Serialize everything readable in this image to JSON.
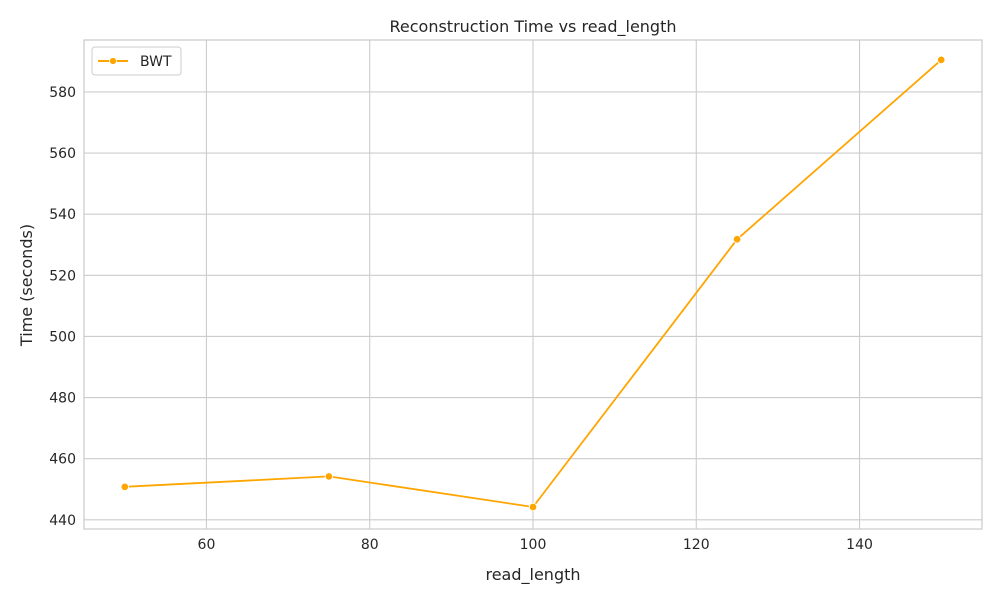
{
  "chart_data": {
    "type": "line",
    "title": "Reconstruction Time vs read_length",
    "xlabel": "read_length",
    "ylabel": "Time (seconds)",
    "xlim": [
      45,
      155
    ],
    "ylim": [
      437,
      597
    ],
    "xticks": [
      60,
      80,
      100,
      120,
      140
    ],
    "yticks": [
      440,
      460,
      480,
      500,
      520,
      540,
      560,
      580
    ],
    "grid": true,
    "legend_position": "top-left",
    "series": [
      {
        "name": "BWT",
        "color": "#ffa500",
        "marker": "circle",
        "x": [
          50,
          75,
          100,
          125,
          150
        ],
        "y": [
          450.8,
          454.2,
          444.2,
          531.8,
          590.5
        ]
      }
    ]
  }
}
